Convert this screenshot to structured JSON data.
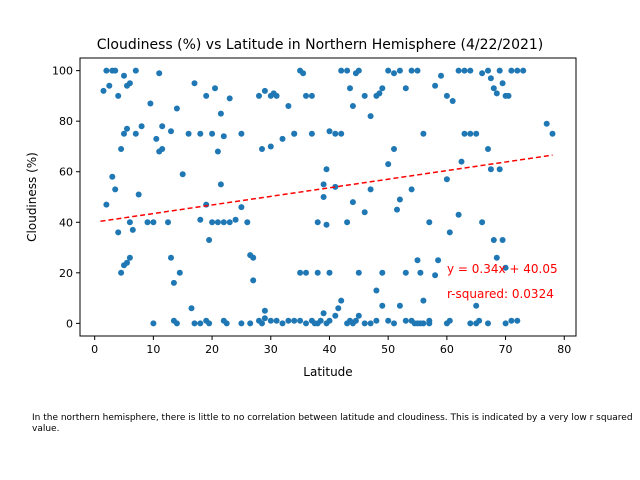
{
  "chart_data": {
    "type": "scatter",
    "title": "Cloudiness (%) vs Latitude in Northern Hemisphere (4/22/2021)",
    "xlabel": "Latitude",
    "ylabel": "Cloudiness (%)",
    "xlim": [
      -2.5,
      82
    ],
    "ylim": [
      -5,
      105
    ],
    "xticks": [
      0,
      10,
      20,
      30,
      40,
      50,
      60,
      70,
      80
    ],
    "yticks": [
      0,
      20,
      40,
      60,
      80,
      100
    ],
    "grid": false,
    "marker_color": "#1f77b4",
    "regression": {
      "slope": 0.34,
      "intercept": 40.05,
      "x_range": [
        1,
        78
      ],
      "color": "#ff0000",
      "equation_label": "y = 0.34x + 40.05",
      "r2_label": "r-squared: 0.0324"
    },
    "points": [
      [
        1.5,
        92
      ],
      [
        2,
        100
      ],
      [
        2.5,
        94
      ],
      [
        3,
        100
      ],
      [
        3.5,
        100
      ],
      [
        4,
        90
      ],
      [
        5,
        98
      ],
      [
        5.5,
        94
      ],
      [
        6,
        95
      ],
      [
        7,
        100
      ],
      [
        8,
        78
      ],
      [
        9.5,
        87
      ],
      [
        11,
        99
      ],
      [
        11.5,
        78
      ],
      [
        13,
        76
      ],
      [
        14,
        85
      ],
      [
        14.5,
        20
      ],
      [
        15,
        59
      ],
      [
        16,
        75
      ],
      [
        17,
        95
      ],
      [
        18,
        75
      ],
      [
        19,
        90
      ],
      [
        20,
        75
      ],
      [
        20.5,
        93
      ],
      [
        21,
        68
      ],
      [
        21.5,
        83
      ],
      [
        22,
        74
      ],
      [
        23,
        89
      ],
      [
        25,
        75
      ],
      [
        27,
        17
      ],
      [
        28,
        90
      ],
      [
        28.5,
        69
      ],
      [
        29,
        92
      ],
      [
        30,
        90
      ],
      [
        30.5,
        91
      ],
      [
        31,
        90
      ],
      [
        32,
        73
      ],
      [
        33,
        86
      ],
      [
        34,
        75
      ],
      [
        35,
        100
      ],
      [
        35.5,
        99
      ],
      [
        36,
        90
      ],
      [
        37,
        90
      ],
      [
        38,
        40
      ],
      [
        39,
        55
      ],
      [
        39.5,
        61
      ],
      [
        40,
        76
      ],
      [
        41,
        75
      ],
      [
        42,
        100
      ],
      [
        43,
        100
      ],
      [
        43.5,
        93
      ],
      [
        44,
        86
      ],
      [
        44.5,
        99
      ],
      [
        45,
        100
      ],
      [
        46,
        90
      ],
      [
        47,
        82
      ],
      [
        48,
        90
      ],
      [
        48.5,
        91
      ],
      [
        49,
        93
      ],
      [
        50,
        100
      ],
      [
        51,
        99
      ],
      [
        52,
        100
      ],
      [
        53,
        93
      ],
      [
        54,
        100
      ],
      [
        55,
        100
      ],
      [
        56,
        75
      ],
      [
        57,
        40
      ],
      [
        58,
        94
      ],
      [
        59,
        98
      ],
      [
        60,
        90
      ],
      [
        61,
        88
      ],
      [
        62,
        100
      ],
      [
        63,
        100
      ],
      [
        64,
        100
      ],
      [
        65,
        75
      ],
      [
        66,
        99
      ],
      [
        67,
        100
      ],
      [
        67.5,
        97
      ],
      [
        68,
        93
      ],
      [
        68.5,
        91
      ],
      [
        69,
        100
      ],
      [
        69.5,
        95
      ],
      [
        70,
        90
      ],
      [
        71,
        100
      ],
      [
        72,
        100
      ],
      [
        73,
        100
      ],
      [
        77,
        79
      ],
      [
        78,
        75
      ],
      [
        2,
        47
      ],
      [
        3,
        58
      ],
      [
        3.5,
        53
      ],
      [
        4,
        36
      ],
      [
        4.5,
        69
      ],
      [
        5,
        75
      ],
      [
        5.5,
        77
      ],
      [
        6,
        40
      ],
      [
        6.5,
        37
      ],
      [
        7,
        75
      ],
      [
        7.5,
        51
      ],
      [
        9,
        40
      ],
      [
        10,
        40
      ],
      [
        10.5,
        73
      ],
      [
        11,
        68
      ],
      [
        11.5,
        69
      ],
      [
        12.5,
        40
      ],
      [
        13,
        26
      ],
      [
        13.5,
        16
      ],
      [
        16.5,
        6
      ],
      [
        18,
        41
      ],
      [
        19,
        47
      ],
      [
        19.5,
        33
      ],
      [
        20,
        40
      ],
      [
        21,
        40
      ],
      [
        21.5,
        55
      ],
      [
        22,
        40
      ],
      [
        23,
        40
      ],
      [
        24,
        41
      ],
      [
        25,
        46
      ],
      [
        26,
        40
      ],
      [
        26.5,
        27
      ],
      [
        27,
        26
      ],
      [
        29,
        5
      ],
      [
        30,
        70
      ],
      [
        32,
        0
      ],
      [
        34,
        75
      ],
      [
        35,
        20
      ],
      [
        36,
        20
      ],
      [
        37,
        75
      ],
      [
        38,
        20
      ],
      [
        39,
        50
      ],
      [
        39.5,
        39
      ],
      [
        40,
        20
      ],
      [
        41,
        54
      ],
      [
        42,
        75
      ],
      [
        43,
        40
      ],
      [
        44,
        48
      ],
      [
        45,
        20
      ],
      [
        46,
        44
      ],
      [
        47,
        53
      ],
      [
        48,
        13
      ],
      [
        49,
        20
      ],
      [
        50,
        63
      ],
      [
        51,
        69
      ],
      [
        51.5,
        45
      ],
      [
        52,
        49
      ],
      [
        53,
        20
      ],
      [
        54,
        53
      ],
      [
        55,
        25
      ],
      [
        55.5,
        20
      ],
      [
        56,
        9
      ],
      [
        57,
        1
      ],
      [
        58,
        19
      ],
      [
        58.5,
        25
      ],
      [
        60,
        57
      ],
      [
        60.5,
        36
      ],
      [
        62,
        43
      ],
      [
        62.5,
        64
      ],
      [
        63,
        75
      ],
      [
        64,
        75
      ],
      [
        65,
        7
      ],
      [
        65.5,
        1
      ],
      [
        66,
        40
      ],
      [
        67,
        69
      ],
      [
        67.5,
        61
      ],
      [
        68,
        33
      ],
      [
        68.5,
        26
      ],
      [
        69,
        61
      ],
      [
        69.5,
        33
      ],
      [
        70,
        22
      ],
      [
        70.5,
        90
      ],
      [
        72,
        1
      ],
      [
        4.5,
        20
      ],
      [
        5,
        23
      ],
      [
        5.5,
        24
      ],
      [
        6,
        26
      ],
      [
        10,
        0
      ],
      [
        13.5,
        1
      ],
      [
        14,
        0
      ],
      [
        17,
        0
      ],
      [
        18,
        0
      ],
      [
        19,
        1
      ],
      [
        19.5,
        0
      ],
      [
        22,
        1
      ],
      [
        22.5,
        0
      ],
      [
        25,
        0
      ],
      [
        26.5,
        0
      ],
      [
        28,
        1
      ],
      [
        28.5,
        0
      ],
      [
        29,
        2
      ],
      [
        30,
        1
      ],
      [
        31,
        1
      ],
      [
        33,
        1
      ],
      [
        34,
        1
      ],
      [
        35,
        1
      ],
      [
        36,
        0
      ],
      [
        37,
        1
      ],
      [
        38,
        0
      ],
      [
        38.5,
        1
      ],
      [
        39,
        4
      ],
      [
        39.5,
        0
      ],
      [
        40,
        1
      ],
      [
        41,
        3
      ],
      [
        41.5,
        6
      ],
      [
        42,
        9
      ],
      [
        43,
        0
      ],
      [
        44,
        0
      ],
      [
        45,
        3
      ],
      [
        46,
        0
      ],
      [
        47,
        0
      ],
      [
        48,
        1
      ],
      [
        49,
        7
      ],
      [
        50,
        1
      ],
      [
        51,
        0
      ],
      [
        52,
        7
      ],
      [
        53,
        1
      ],
      [
        54,
        1
      ],
      [
        55,
        0
      ],
      [
        56,
        0
      ],
      [
        57,
        0
      ],
      [
        60,
        0
      ],
      [
        60.5,
        1
      ],
      [
        64,
        0
      ],
      [
        65,
        0
      ],
      [
        67,
        0
      ],
      [
        70,
        0
      ],
      [
        71,
        1
      ],
      [
        54.5,
        0
      ],
      [
        55.5,
        0
      ],
      [
        44.5,
        1
      ],
      [
        37.5,
        0
      ],
      [
        43.5,
        1
      ]
    ]
  },
  "caption": "In the northern hemisphere, there is little to no correlation between latitude and cloudiness. This is indicated by a very low r squared value."
}
